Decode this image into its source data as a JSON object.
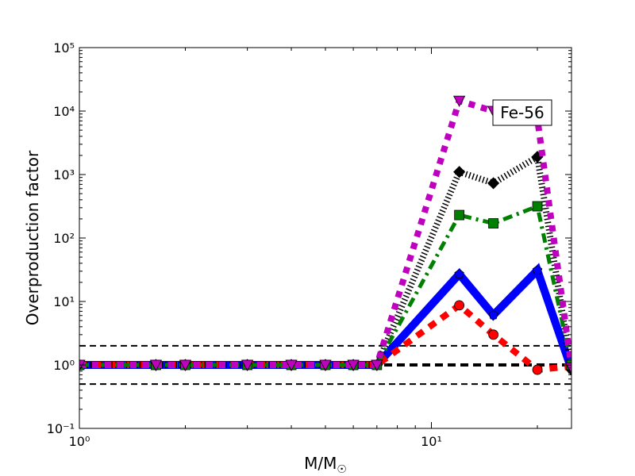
{
  "chart_data": {
    "type": "line",
    "title": "",
    "annotation": "Fe-56",
    "xlabel_main": "M/M",
    "xlabel_sub": "☉",
    "ylabel": "Overproduction factor",
    "xscale": "log",
    "yscale": "log",
    "xlim": [
      1,
      25
    ],
    "ylim": [
      0.1,
      100000
    ],
    "x_ticks": [
      1,
      10
    ],
    "x_tick_labels": [
      "10⁰",
      "10¹"
    ],
    "y_ticks": [
      0.1,
      1,
      10,
      100,
      1000,
      10000,
      100000
    ],
    "y_tick_labels": [
      "10⁻¹",
      "10⁰",
      "10¹",
      "10²",
      "10³",
      "10⁴",
      "10⁵"
    ],
    "grid": false,
    "reference_lines": [
      {
        "y": 2,
        "style": "thin-dashed",
        "color": "#000000"
      },
      {
        "y": 1,
        "style": "thick-dashed",
        "color": "#000000"
      },
      {
        "y": 0.5,
        "style": "thin-dashed",
        "color": "#000000"
      }
    ],
    "x": [
      1,
      1.65,
      2,
      3,
      4,
      5,
      6,
      7,
      12,
      15,
      20,
      25
    ],
    "series": [
      {
        "name": "magenta",
        "color": "#bf00bf",
        "marker": "triangle-down",
        "style": "dotted-thick",
        "values": [
          1,
          1,
          1,
          1,
          1,
          1,
          1,
          1,
          14500,
          10000,
          7500,
          0.9
        ]
      },
      {
        "name": "black",
        "color": "#000000",
        "marker": "diamond",
        "style": "dotted-hatched",
        "values": [
          1,
          1,
          1,
          1,
          1,
          1,
          1,
          1,
          1100,
          730,
          1900,
          0.84
        ]
      },
      {
        "name": "green",
        "color": "#008000",
        "marker": "square",
        "style": "dash-dot",
        "values": [
          1,
          1,
          1,
          1,
          1,
          1,
          1,
          1,
          230,
          170,
          316,
          1.0
        ]
      },
      {
        "name": "blue",
        "color": "#0000ff",
        "marker": "pentagon",
        "style": "solid-thick",
        "values": [
          1,
          1,
          1,
          1,
          1,
          1,
          1,
          1,
          27,
          6.1,
          31,
          0.85
        ]
      },
      {
        "name": "red",
        "color": "#ff0000",
        "marker": "circle",
        "style": "dashed-thick",
        "values": [
          1,
          1,
          1,
          1,
          1,
          1,
          1,
          1,
          8.7,
          3.0,
          0.84,
          0.95
        ]
      }
    ]
  }
}
